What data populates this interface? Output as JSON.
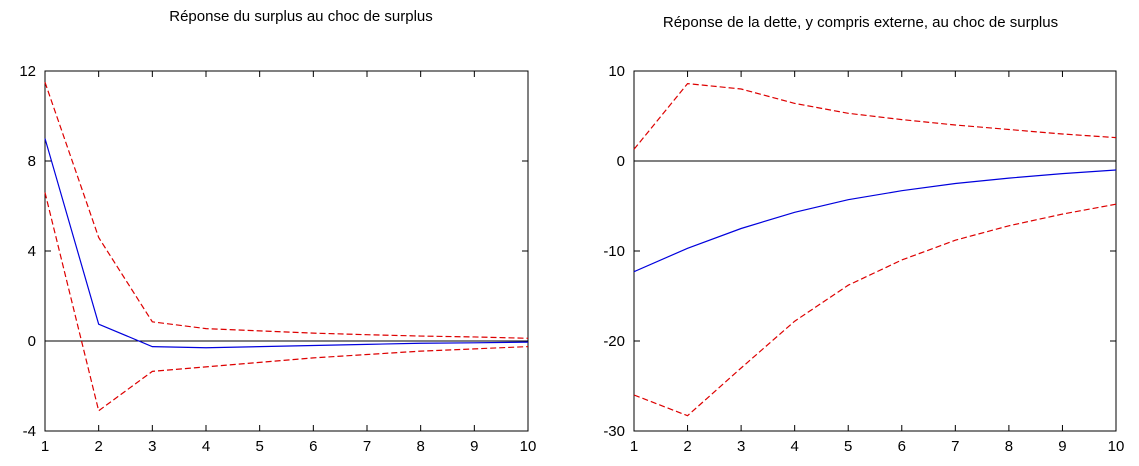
{
  "chart_data": [
    {
      "type": "line",
      "title": "Réponse du surplus au choc de surplus",
      "x": [
        1,
        2,
        3,
        4,
        5,
        6,
        7,
        8,
        9,
        10
      ],
      "xlim": [
        1,
        10
      ],
      "ylim": [
        -4,
        12
      ],
      "yticks": [
        -4,
        0,
        4,
        8,
        12
      ],
      "grid": false,
      "zero_line": true,
      "series": [
        {
          "values": [
            9.0,
            0.75,
            -0.25,
            -0.3,
            -0.25,
            -0.2,
            -0.15,
            -0.1,
            -0.08,
            -0.05
          ],
          "color": "#0000dd",
          "dash": "solid"
        },
        {
          "values": [
            11.5,
            4.6,
            0.85,
            0.55,
            0.45,
            0.35,
            0.28,
            0.22,
            0.18,
            0.12
          ],
          "color": "#dd0000",
          "dash": "dashed"
        },
        {
          "values": [
            6.6,
            -3.1,
            -1.35,
            -1.15,
            -0.95,
            -0.75,
            -0.6,
            -0.45,
            -0.35,
            -0.25
          ],
          "color": "#dd0000",
          "dash": "dashed"
        }
      ]
    },
    {
      "type": "line",
      "title": "Réponse de la dette, y compris externe, au choc de surplus",
      "x": [
        1,
        2,
        3,
        4,
        5,
        6,
        7,
        8,
        9,
        10
      ],
      "xlim": [
        1,
        10
      ],
      "ylim": [
        -30,
        10
      ],
      "yticks": [
        -30,
        -20,
        -10,
        0,
        10
      ],
      "grid": false,
      "zero_line": true,
      "series": [
        {
          "values": [
            -12.3,
            -9.7,
            -7.5,
            -5.7,
            -4.3,
            -3.3,
            -2.5,
            -1.9,
            -1.4,
            -1.0
          ],
          "color": "#0000dd",
          "dash": "solid"
        },
        {
          "values": [
            1.3,
            8.6,
            8.0,
            6.4,
            5.3,
            4.6,
            4.0,
            3.5,
            3.0,
            2.6
          ],
          "color": "#dd0000",
          "dash": "dashed"
        },
        {
          "values": [
            -26.0,
            -28.3,
            -23.0,
            -17.8,
            -13.8,
            -11.0,
            -8.8,
            -7.2,
            -5.9,
            -4.8
          ],
          "color": "#dd0000",
          "dash": "dashed"
        }
      ]
    }
  ]
}
